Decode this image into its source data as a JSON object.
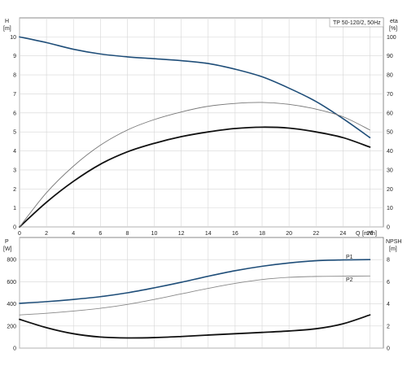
{
  "chart_data": [
    {
      "type": "line",
      "title": "TP 50-120/2, 50Hz",
      "xlabel": "Q",
      "xunit": "[m³/h]",
      "ylabel_left": "H",
      "yunit_left": "[m]",
      "ylabel_right": "eta",
      "yunit_right": "[%]",
      "xlim": [
        0,
        27
      ],
      "ylim_left": [
        0,
        11
      ],
      "ylim_right": [
        0,
        110
      ],
      "x_ticks": [
        0,
        2,
        4,
        6,
        8,
        10,
        12,
        14,
        16,
        18,
        20,
        22,
        24,
        26
      ],
      "y_ticks_left": [
        0,
        1,
        2,
        3,
        4,
        5,
        6,
        7,
        8,
        9,
        10
      ],
      "y_ticks_right": [
        0,
        10,
        20,
        30,
        40,
        50,
        60,
        70,
        80,
        90,
        100
      ],
      "grid": true,
      "series": [
        {
          "axis": "left",
          "color": "#1f4e79",
          "x": [
            0,
            2,
            4,
            6,
            8,
            10,
            12,
            14,
            16,
            18,
            20,
            22,
            24,
            26
          ],
          "values": [
            10.0,
            9.7,
            9.35,
            9.1,
            8.95,
            8.85,
            8.75,
            8.6,
            8.3,
            7.9,
            7.3,
            6.6,
            5.7,
            4.7
          ]
        },
        {
          "axis": "left",
          "color": "#111111",
          "x": [
            0,
            2,
            4,
            6,
            8,
            10,
            12,
            14,
            16,
            18,
            20,
            22,
            24,
            26
          ],
          "values": [
            0,
            1.3,
            2.4,
            3.3,
            3.95,
            4.4,
            4.75,
            5.0,
            5.18,
            5.25,
            5.2,
            5.0,
            4.7,
            4.2
          ]
        },
        {
          "axis": "right",
          "color": "#777777",
          "x": [
            0,
            2,
            4,
            6,
            8,
            10,
            12,
            14,
            16,
            18,
            20,
            22,
            24,
            26
          ],
          "values": [
            0,
            18,
            32,
            43,
            51,
            56.5,
            60.5,
            63.5,
            65,
            65.5,
            64.5,
            62,
            58,
            51
          ]
        }
      ]
    },
    {
      "type": "line",
      "ylabel_left": "P",
      "yunit_left": "[W]",
      "ylabel_right": "NPSH",
      "yunit_right": "[m]",
      "xlim": [
        0,
        27
      ],
      "ylim_left": [
        0,
        1000
      ],
      "ylim_right": [
        0,
        10
      ],
      "y_ticks_left": [
        0,
        200,
        400,
        600,
        800
      ],
      "y_ticks_right": [
        0,
        2,
        4,
        6,
        8
      ],
      "grid": true,
      "series": [
        {
          "name": "P1",
          "axis": "left",
          "color": "#1f4e79",
          "x": [
            0,
            2,
            4,
            6,
            8,
            10,
            12,
            14,
            16,
            18,
            20,
            22,
            24,
            26
          ],
          "values": [
            405,
            420,
            440,
            465,
            500,
            545,
            595,
            650,
            700,
            740,
            770,
            790,
            797,
            800
          ]
        },
        {
          "name": "P2",
          "axis": "left",
          "color": "#888888",
          "x": [
            0,
            2,
            4,
            6,
            8,
            10,
            12,
            14,
            16,
            18,
            20,
            22,
            24,
            26
          ],
          "values": [
            300,
            315,
            335,
            360,
            395,
            440,
            490,
            540,
            585,
            620,
            640,
            648,
            650,
            652
          ]
        },
        {
          "axis": "right",
          "color": "#111111",
          "x": [
            0,
            2,
            4,
            6,
            8,
            10,
            12,
            14,
            16,
            18,
            20,
            22,
            24,
            26
          ],
          "values": [
            2.6,
            1.85,
            1.3,
            1.0,
            0.92,
            0.95,
            1.05,
            1.18,
            1.3,
            1.42,
            1.55,
            1.75,
            2.2,
            3.0
          ]
        }
      ]
    }
  ]
}
